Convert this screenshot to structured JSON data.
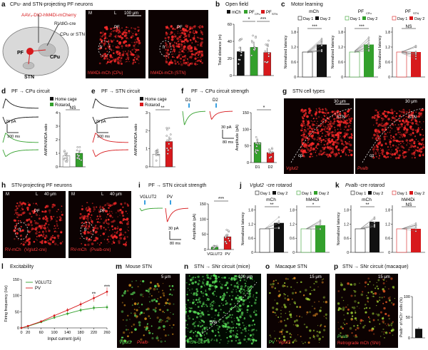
{
  "panel_a": {
    "label": "a",
    "title": "CPu- and STN-projecting PF neurons",
    "virus1": "AAV₉-DIO-hM4Di-mCherry",
    "virus2": "RVdlG-cre",
    "inj": "CPu or STN",
    "regions": [
      "PF",
      "CPu",
      "STN"
    ],
    "axis_m": "M",
    "axis_l": "L",
    "scale": "100 μm",
    "img1_label": "PF",
    "img1_fr": "fr",
    "img1_caption": "hM4Di-mCh (CPu)",
    "img2_label": "PF",
    "img2_fr": "fr",
    "img2_caption": "hM4Di-mCh (STN)"
  },
  "panel_b": {
    "label": "b",
    "title": "Open field",
    "legend": [
      "mCh",
      "PF",
      "PF"
    ],
    "legend_sub": [
      "",
      "CPu",
      "STN"
    ],
    "ylabel": "Total distance (m)",
    "sig": [
      "*",
      "***"
    ]
  },
  "panel_c": {
    "label": "c",
    "title": "Motor learning",
    "subtitles": [
      "mCh",
      "PF",
      "PF"
    ],
    "subtitle_sub": [
      "",
      "CPu",
      "STN"
    ],
    "ylabel": "Normalized latency",
    "day1": "Day 1",
    "day2": "Day 2",
    "sig": [
      "***",
      "***",
      "NS"
    ]
  },
  "panel_d": {
    "label": "d",
    "title": "PF → CPu circuit",
    "legend": [
      "Home cage",
      "Rotarod"
    ],
    "scale_a": "20 pA",
    "scale_t": "100 ms",
    "ylabel": "AMPA/NMDA ratio",
    "sig": "NS"
  },
  "panel_e": {
    "label": "e",
    "title": "PF → STN circuit",
    "legend": [
      "Home cage",
      "Rotarod"
    ],
    "scale_a": "20 pA",
    "scale_t": "100 ms",
    "ylabel": "AMPA/NMDA ratio",
    "sig": "**"
  },
  "panel_f": {
    "label": "f",
    "title": "PF → CPu circuit strength",
    "d1": "D1",
    "d2": "D2",
    "scale_a": "30 pA",
    "scale_t": "80 ms",
    "ylabel": "Amplitude (pA)",
    "categories": [
      "D1",
      "D2"
    ],
    "sig": "*"
  },
  "panel_g": {
    "label": "g",
    "title": "STN cell types",
    "scale": "30 μm",
    "stn": "STN",
    "cp": "cp",
    "cap1": "Vglut2",
    "cap2": "Pvalb"
  },
  "panel_h": {
    "label": "h",
    "title": "STN-projecting PF neurons",
    "axis_m": "M",
    "axis_l": "L",
    "scale": "40 μm",
    "pf": "PF",
    "fr": "fr",
    "cap1": "RV-mCh",
    "cap1b": "(Vglut2-cre)",
    "cap2": "RV-mCh",
    "cap2b": "(Pvalb-cre)"
  },
  "panel_i": {
    "label": "i",
    "title": "PF → STN circuit strength",
    "trace1": "VGLUT2",
    "trace2": "PV",
    "scale_a": "30 pA",
    "scale_t": "80 ms",
    "ylabel": "Amplitude (pA)",
    "categories": [
      "VGLUT2",
      "PV"
    ],
    "sig": "***"
  },
  "panel_j": {
    "label": "j",
    "title_italic": "Vglut2",
    "title_rest": "-cre rotarod",
    "sub1": "mCh",
    "sub2": "hM4Di",
    "ylabel": "Normalized latency",
    "day1": "Day 1",
    "day2": "Day 2",
    "sig": [
      "**",
      "*"
    ]
  },
  "panel_k": {
    "label": "k",
    "title_italic": "Pvalb",
    "title_rest": "-cre rotarod",
    "sub1": "mCh",
    "sub2": "hM4Di",
    "ylabel": "Normalized latency",
    "day1": "Day 1",
    "day2": "Day 2",
    "sig": [
      "**",
      "NS"
    ]
  },
  "panel_l": {
    "label": "l",
    "title": "Excitability",
    "legend": [
      "VGLUT2",
      "PV"
    ],
    "ylabel": "Firing frequency (Hz)",
    "xlabel": "Input current (pA)",
    "sig": [
      "**",
      "***"
    ]
  },
  "panel_m": {
    "label": "m",
    "title": "Mouse STN",
    "scale": "5 μm",
    "cap1": "Vglut3",
    "cap2": "Pvalb"
  },
  "panel_n": {
    "label": "n",
    "title": "STN → SNr circuit (mice)",
    "scale": "100 μm",
    "snr": "SNr",
    "cap": "HSV-GFP"
  },
  "panel_o": {
    "label": "o",
    "title": "Macaque STN",
    "scale": "15 μm",
    "cap1": "PV",
    "cap2": "Vglut3"
  },
  "panel_p": {
    "label": "p",
    "title": "STN → SNr circuit (macaque)",
    "scale": "15 μm",
    "cap1": "Pvalb",
    "cap2": "Retrograde mCh (SNr)",
    "ylabel": "Pvalb⁺ of mCh⁺ cells (%)"
  },
  "colors": {
    "red": "#d7191c",
    "green": "#33a02c",
    "black": "#111111",
    "gray": "#888888",
    "micro_red": "#ff2a2a",
    "micro_green": "#5ce65c"
  },
  "chart_data": [
    {
      "id": "b",
      "type": "bar",
      "categories": [
        "mCh",
        "PFCPu",
        "PFSTN"
      ],
      "values": [
        28,
        33,
        27
      ],
      "ylim": [
        0,
        60
      ],
      "yticks": [
        0,
        20,
        40,
        60
      ]
    },
    {
      "id": "d",
      "type": "bar",
      "categories": [
        "Home cage",
        "Rotarod"
      ],
      "values": [
        0.8,
        1.0
      ],
      "ylim": [
        0,
        4
      ],
      "yticks": [
        0,
        1,
        2,
        3,
        4
      ]
    },
    {
      "id": "e",
      "type": "bar",
      "categories": [
        "Home cage",
        "Rotarod"
      ],
      "values": [
        0.7,
        1.4
      ],
      "ylim": [
        0,
        3
      ],
      "yticks": [
        0,
        1,
        2,
        3
      ]
    },
    {
      "id": "f",
      "type": "bar",
      "categories": [
        "D1",
        "D2"
      ],
      "values": [
        60,
        30
      ],
      "ylim": [
        0,
        150
      ],
      "yticks": [
        0,
        50,
        100,
        150
      ]
    },
    {
      "id": "i",
      "type": "bar",
      "categories": [
        "VGLUT2",
        "PV"
      ],
      "values": [
        8,
        42
      ],
      "ylim": [
        0,
        150
      ],
      "yticks": [
        0,
        50,
        100,
        150
      ]
    },
    {
      "id": "l",
      "type": "line",
      "x": [
        0,
        20,
        60,
        100,
        140,
        180,
        220,
        260
      ],
      "xticks": [
        0,
        20,
        60,
        100,
        140,
        180,
        220,
        260
      ],
      "ylim": [
        0,
        150
      ],
      "yticks": [
        0,
        50,
        100,
        150
      ],
      "series": [
        {
          "name": "VGLUT2",
          "values": [
            0,
            5,
            18,
            32,
            44,
            55,
            62,
            64
          ]
        },
        {
          "name": "PV",
          "values": [
            0,
            6,
            20,
            38,
            55,
            73,
            92,
            112
          ]
        }
      ]
    },
    {
      "id": "p",
      "type": "bar",
      "categories": [
        ""
      ],
      "values": [
        22
      ],
      "ylim": [
        0,
        100
      ],
      "yticks": [
        0,
        50,
        100
      ]
    }
  ]
}
